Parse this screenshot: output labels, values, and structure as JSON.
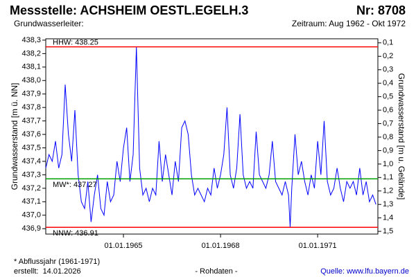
{
  "chart_data": {
    "type": "line",
    "title": "Messstelle: ACHSHEIM OESTL.EGELH.3",
    "number": "Nr: 8708",
    "aquifer": "Grundwasserleiter:",
    "period": "Zeitraum: Aug 1962 - Okt 1972",
    "ylabel": "Grundwasserstand [m ü. NN]",
    "y2label": "Grundwasserstand [m u. Gelände]",
    "footnote": "* Abflussjahr (1961-1971)",
    "created": "erstellt:  14.01.2026",
    "note": "- Rohdaten -",
    "source": "Quelle: www.lfu.bayern.de",
    "xlim": [
      1962.6,
      1972.86
    ],
    "xticks": [
      {
        "value": 1965,
        "label": "01.01.1965"
      },
      {
        "value": 1968,
        "label": "01.01.1968"
      },
      {
        "value": 1971,
        "label": "01.01.1971"
      }
    ],
    "ylim": [
      436.86,
      438.31
    ],
    "yticks": [
      {
        "value": 436.9,
        "label": "436,9"
      },
      {
        "value": 437.0,
        "label": "437,0"
      },
      {
        "value": 437.1,
        "label": "437,1"
      },
      {
        "value": 437.2,
        "label": "437,2"
      },
      {
        "value": 437.3,
        "label": "437,3"
      },
      {
        "value": 437.4,
        "label": "437,4"
      },
      {
        "value": 437.5,
        "label": "437,5"
      },
      {
        "value": 437.6,
        "label": "437,6"
      },
      {
        "value": 437.7,
        "label": "437,7"
      },
      {
        "value": 437.8,
        "label": "437,8"
      },
      {
        "value": 437.9,
        "label": "437,9"
      },
      {
        "value": 438.0,
        "label": "438,0"
      },
      {
        "value": 438.1,
        "label": "438,1"
      },
      {
        "value": 438.2,
        "label": "438,2"
      },
      {
        "value": 438.3,
        "label": "438,3"
      }
    ],
    "y2lim": [
      1.52,
      0.07
    ],
    "y2ticks": [
      {
        "value": 0.1,
        "label": "0,1"
      },
      {
        "value": 0.2,
        "label": "0,2"
      },
      {
        "value": 0.3,
        "label": "0,3"
      },
      {
        "value": 0.4,
        "label": "0,4"
      },
      {
        "value": 0.5,
        "label": "0,5"
      },
      {
        "value": 0.6,
        "label": "0,6"
      },
      {
        "value": 0.7,
        "label": "0,7"
      },
      {
        "value": 0.8,
        "label": "0,8"
      },
      {
        "value": 0.9,
        "label": "0,9"
      },
      {
        "value": 1.0,
        "label": "1,0"
      },
      {
        "value": 1.1,
        "label": "1,1"
      },
      {
        "value": 1.2,
        "label": "1,2"
      },
      {
        "value": 1.3,
        "label": "1,3"
      },
      {
        "value": 1.4,
        "label": "1,4"
      },
      {
        "value": 1.5,
        "label": "1,5"
      }
    ],
    "reference_lines": [
      {
        "label": "HHW: 438.25",
        "value": 438.25,
        "color": "#ff0000"
      },
      {
        "label": "MW*: 437.27",
        "value": 437.27,
        "color": "#00a000"
      },
      {
        "label": "NNW: 436.91",
        "value": 436.91,
        "color": "#ff0000"
      }
    ],
    "series": [
      {
        "color": "#0000ff",
        "x": [
          1962.6,
          1962.7,
          1962.8,
          1962.9,
          1963.0,
          1963.1,
          1963.2,
          1963.3,
          1963.4,
          1963.5,
          1963.6,
          1963.7,
          1963.8,
          1963.9,
          1964.0,
          1964.1,
          1964.2,
          1964.3,
          1964.4,
          1964.5,
          1964.6,
          1964.7,
          1964.8,
          1964.9,
          1965.0,
          1965.1,
          1965.2,
          1965.3,
          1965.4,
          1965.5,
          1965.6,
          1965.7,
          1965.8,
          1965.9,
          1966.0,
          1966.1,
          1966.2,
          1966.3,
          1966.4,
          1966.5,
          1966.6,
          1966.7,
          1966.8,
          1966.9,
          1967.0,
          1967.1,
          1967.2,
          1967.3,
          1967.4,
          1967.5,
          1967.6,
          1967.7,
          1967.8,
          1967.9,
          1968.0,
          1968.1,
          1968.2,
          1968.3,
          1968.4,
          1968.5,
          1968.6,
          1968.7,
          1968.8,
          1968.9,
          1969.0,
          1969.1,
          1969.2,
          1969.3,
          1969.4,
          1969.5,
          1969.6,
          1969.7,
          1969.8,
          1969.9,
          1970.0,
          1970.1,
          1970.15,
          1970.2,
          1970.3,
          1970.4,
          1970.5,
          1970.6,
          1970.7,
          1970.8,
          1970.9,
          1971.0,
          1971.1,
          1971.2,
          1971.3,
          1971.4,
          1971.5,
          1971.6,
          1971.7,
          1971.8,
          1971.9,
          1972.0,
          1972.1,
          1972.2,
          1972.3,
          1972.4,
          1972.5,
          1972.6,
          1972.7,
          1972.8
        ],
        "values": [
          437.35,
          437.45,
          437.4,
          437.55,
          437.35,
          437.45,
          437.97,
          437.6,
          437.4,
          437.78,
          437.3,
          437.1,
          437.05,
          437.25,
          436.95,
          437.15,
          437.3,
          437.05,
          437.0,
          437.25,
          437.1,
          437.15,
          437.4,
          437.25,
          437.5,
          437.65,
          437.25,
          437.45,
          438.25,
          437.35,
          437.15,
          437.2,
          437.1,
          437.2,
          437.15,
          437.55,
          437.25,
          437.45,
          437.3,
          437.15,
          437.4,
          437.25,
          437.65,
          437.7,
          437.6,
          437.3,
          437.15,
          437.2,
          437.15,
          437.1,
          437.2,
          437.15,
          437.35,
          437.2,
          437.3,
          437.45,
          437.8,
          437.3,
          437.2,
          437.35,
          437.75,
          437.3,
          437.2,
          437.25,
          437.2,
          437.62,
          437.3,
          437.25,
          437.2,
          437.3,
          437.55,
          437.25,
          437.2,
          437.15,
          437.25,
          437.15,
          436.91,
          437.2,
          437.6,
          437.3,
          437.4,
          437.25,
          437.15,
          437.3,
          437.2,
          437.55,
          437.3,
          437.7,
          437.25,
          437.15,
          437.2,
          437.35,
          437.2,
          437.1,
          437.25,
          437.2,
          437.25,
          437.15,
          437.35,
          437.15,
          437.25,
          437.1,
          437.15,
          437.08
        ]
      }
    ]
  }
}
